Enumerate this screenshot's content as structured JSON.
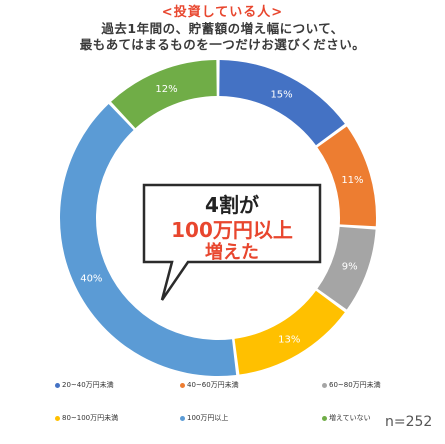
{
  "header": {
    "line1": "<投資している人>",
    "line2": "過去1年間の、貯蓄額の増え幅について、",
    "line3": "最もあてはまるものを一つだけお選びください。"
  },
  "callout": {
    "line1": "4割が",
    "line2": "100万円以上",
    "line3": "増えた"
  },
  "chart_data": {
    "type": "pie",
    "title": "",
    "n_label": "n=252",
    "categories": [
      "20~40万円未満",
      "40~60万円未満",
      "60~80万円未満",
      "80~100万円未満",
      "100万円以上",
      "増えていない"
    ],
    "values": [
      15,
      11,
      9,
      13,
      40,
      12
    ],
    "value_labels": [
      "15%",
      "11%",
      "9%",
      "13%",
      "40%",
      "12%"
    ],
    "colors": [
      "#4472c4",
      "#ed7d31",
      "#a5a5a5",
      "#ffc000",
      "#5b9bd5",
      "#70ad47"
    ]
  },
  "legend": {
    "items": [
      {
        "label": "20~40万円未満",
        "color": "#4472c4"
      },
      {
        "label": "40~60万円未満",
        "color": "#ed7d31"
      },
      {
        "label": "60~80万円未満",
        "color": "#a5a5a5"
      },
      {
        "label": "80~100万円未満",
        "color": "#ffc000"
      },
      {
        "label": "100万円以上",
        "color": "#5b9bd5"
      },
      {
        "label": "増えていない",
        "color": "#70ad47"
      }
    ]
  }
}
